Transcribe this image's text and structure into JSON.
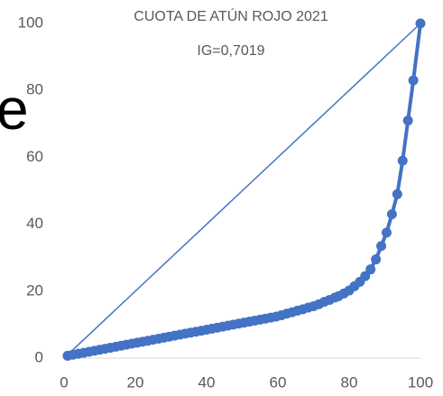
{
  "chart_data": {
    "type": "line",
    "title": "CUOTA DE ATÚN ROJO 2021",
    "subtitle": "IG=0,7019",
    "annotation": "e",
    "xlim": [
      0,
      100
    ],
    "xticks": [
      0,
      20,
      40,
      60,
      80,
      100
    ],
    "ylim": [
      0,
      100
    ],
    "yticks": [
      0,
      20,
      40,
      60,
      80,
      100
    ],
    "grid": false,
    "series": [
      {
        "color": "#4472c4",
        "markers": false,
        "x": [
          1,
          100
        ],
        "values": [
          1,
          100
        ]
      },
      {
        "color": "#4472c4",
        "markers": true,
        "x": [
          1,
          2.5,
          4,
          5.5,
          7,
          8.5,
          10,
          11.5,
          13,
          14.5,
          16,
          17.5,
          19,
          20.5,
          22,
          23.5,
          25,
          26.5,
          28,
          29.5,
          31,
          32.5,
          34,
          35.5,
          37,
          38.5,
          40,
          41.5,
          43,
          44.5,
          46,
          47.5,
          49,
          50.5,
          52,
          53.5,
          55,
          56.5,
          58,
          59.5,
          61,
          62.5,
          64,
          65.5,
          67,
          68.5,
          70,
          71.5,
          73,
          74.5,
          76,
          77,
          78.5,
          80,
          81.5,
          83,
          84.5,
          86,
          87.5,
          89,
          90.5,
          92,
          93.5,
          95,
          96.5,
          98,
          100
        ],
        "values": [
          0.7,
          1.0,
          1.3,
          1.6,
          1.9,
          2.2,
          2.5,
          2.8,
          3.1,
          3.4,
          3.7,
          4.0,
          4.3,
          4.6,
          4.9,
          5.2,
          5.5,
          5.8,
          6.1,
          6.4,
          6.7,
          7.0,
          7.3,
          7.6,
          7.9,
          8.2,
          8.5,
          8.8,
          9.1,
          9.4,
          9.7,
          10.0,
          10.3,
          10.6,
          10.9,
          11.2,
          11.5,
          11.8,
          12.1,
          12.4,
          12.8,
          13.3,
          13.7,
          14.2,
          14.6,
          15.1,
          15.5,
          16.1,
          16.8,
          17.4,
          18.1,
          18.5,
          19.3,
          20.2,
          21.5,
          22.8,
          24.5,
          26.5,
          29.5,
          33.5,
          37.5,
          43,
          49,
          59,
          71,
          83,
          100
        ]
      }
    ]
  }
}
